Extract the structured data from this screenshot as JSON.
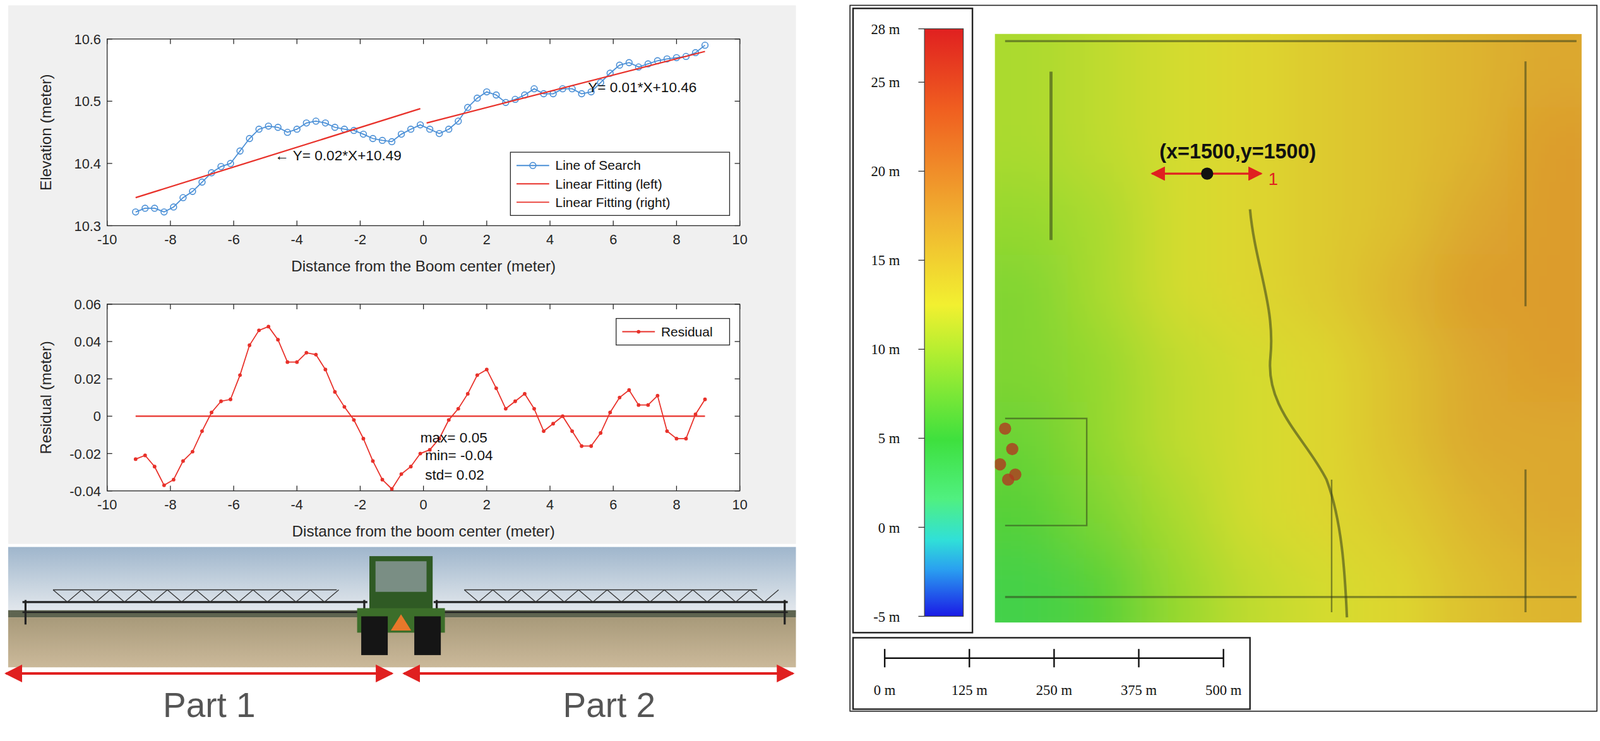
{
  "chart_data": [
    {
      "type": "line",
      "xlabel": "Distance from the Boom center (meter)",
      "ylabel": "Elevation (meter)",
      "xlim": [
        -10,
        10
      ],
      "ylim": [
        10.3,
        10.6
      ],
      "xticks": [
        -10,
        -8,
        -6,
        -4,
        -2,
        0,
        2,
        4,
        6,
        8,
        10
      ],
      "yticks": [
        10.3,
        10.4,
        10.5,
        10.6
      ],
      "legend": "southeast",
      "series": [
        {
          "name": "Line of Search",
          "color": "#4a8fd6",
          "marker": "circle",
          "x": [
            -9.1,
            -8.8,
            -8.5,
            -8.2,
            -7.9,
            -7.6,
            -7.3,
            -7,
            -6.7,
            -6.4,
            -6.1,
            -5.8,
            -5.5,
            -5.2,
            -4.9,
            -4.6,
            -4.3,
            -4,
            -3.7,
            -3.4,
            -3.1,
            -2.8,
            -2.5,
            -2.2,
            -1.9,
            -1.6,
            -1.3,
            -1,
            -0.7,
            -0.4,
            -0.1,
            0.2,
            0.5,
            0.8,
            1.1,
            1.4,
            1.7,
            2,
            2.3,
            2.6,
            2.9,
            3.2,
            3.5,
            3.8,
            4.1,
            4.4,
            4.7,
            5,
            5.3,
            5.6,
            5.9,
            6.2,
            6.5,
            6.8,
            7.1,
            7.4,
            7.7,
            8,
            8.3,
            8.6,
            8.9
          ],
          "values": [
            10.322,
            10.328,
            10.328,
            10.322,
            10.33,
            10.345,
            10.355,
            10.37,
            10.385,
            10.395,
            10.4,
            10.42,
            10.44,
            10.455,
            10.46,
            10.458,
            10.45,
            10.455,
            10.465,
            10.468,
            10.465,
            10.458,
            10.455,
            10.453,
            10.447,
            10.44,
            10.437,
            10.435,
            10.447,
            10.455,
            10.462,
            10.455,
            10.448,
            10.455,
            10.468,
            10.49,
            10.505,
            10.515,
            10.51,
            10.498,
            10.503,
            10.51,
            10.52,
            10.512,
            10.512,
            10.52,
            10.52,
            10.512,
            10.515,
            10.53,
            10.545,
            10.558,
            10.562,
            10.555,
            10.56,
            10.565,
            10.568,
            10.57,
            10.572,
            10.578,
            10.59
          ]
        },
        {
          "name": "Linear Fitting (left)",
          "color": "#e8312a",
          "x": [
            -9.1,
            -0.1
          ],
          "values": [
            10.345,
            10.488
          ]
        },
        {
          "name": "Linear Fitting (right)",
          "color": "#e8312a",
          "x": [
            0.1,
            8.9
          ],
          "values": [
            10.465,
            10.58
          ]
        }
      ],
      "annotations": [
        {
          "text": "← Y= 0.02*X+10.49",
          "x": -4.7,
          "y": 10.405
        },
        {
          "text": "Y= 0.01*X+10.46",
          "x": 5.2,
          "y": 10.515
        }
      ]
    },
    {
      "type": "line",
      "xlabel": "Distance from the boom center (meter)",
      "ylabel": "Residual (meter)",
      "xlim": [
        -10,
        10
      ],
      "ylim": [
        -0.04,
        0.06
      ],
      "xticks": [
        -10,
        -8,
        -6,
        -4,
        -2,
        0,
        2,
        4,
        6,
        8,
        10
      ],
      "yticks": [
        -0.04,
        -0.02,
        0,
        0.02,
        0.04,
        0.06
      ],
      "legend": "northeast",
      "series": [
        {
          "name": "Residual",
          "color": "#e8312a",
          "marker": "dot",
          "x": [
            -9.1,
            -8.8,
            -8.5,
            -8.2,
            -7.9,
            -7.6,
            -7.3,
            -7,
            -6.7,
            -6.4,
            -6.1,
            -5.8,
            -5.5,
            -5.2,
            -4.9,
            -4.6,
            -4.3,
            -4,
            -3.7,
            -3.4,
            -3.1,
            -2.8,
            -2.5,
            -2.2,
            -1.9,
            -1.6,
            -1.3,
            -1,
            -0.7,
            -0.4,
            -0.1,
            0.2,
            0.5,
            0.8,
            1.1,
            1.4,
            1.7,
            2,
            2.3,
            2.6,
            2.9,
            3.2,
            3.5,
            3.8,
            4.1,
            4.4,
            4.7,
            5,
            5.3,
            5.6,
            5.9,
            6.2,
            6.5,
            6.8,
            7.1,
            7.4,
            7.7,
            8,
            8.3,
            8.6,
            8.9
          ],
          "values": [
            -0.023,
            -0.021,
            -0.027,
            -0.037,
            -0.034,
            -0.024,
            -0.019,
            -0.008,
            0.002,
            0.008,
            0.009,
            0.022,
            0.038,
            0.046,
            0.048,
            0.041,
            0.029,
            0.029,
            0.034,
            0.033,
            0.025,
            0.013,
            0.005,
            -0.002,
            -0.012,
            -0.024,
            -0.034,
            -0.039,
            -0.031,
            -0.027,
            -0.02,
            -0.018,
            -0.012,
            -0.002,
            0.004,
            0.012,
            0.022,
            0.025,
            0.015,
            0.004,
            0.008,
            0.012,
            0.004,
            -0.008,
            -0.004,
            0,
            -0.008,
            -0.016,
            -0.016,
            -0.009,
            0.002,
            0.01,
            0.014,
            0.006,
            0.006,
            0.011,
            -0.008,
            -0.012,
            -0.012,
            0.001,
            0.009
          ]
        },
        {
          "color": "#e8312a",
          "x": [
            -9.1,
            8.9
          ],
          "values": [
            0,
            0
          ]
        }
      ],
      "annotations": [
        {
          "text": "max= 0.05",
          "x": -0.1,
          "y": -0.014
        },
        {
          "text": "min= -0.04",
          "x": 0.05,
          "y": -0.0236
        },
        {
          "text": "std= 0.02",
          "x": 0.05,
          "y": -0.034
        }
      ]
    },
    {
      "type": "heatmap",
      "cells": [
        [
          10,
          11,
          12,
          13,
          14,
          15,
          16,
          17
        ],
        [
          10,
          11,
          12,
          13,
          14,
          15,
          16,
          18
        ],
        [
          9,
          10,
          12,
          13,
          14,
          15,
          17,
          18
        ],
        [
          8,
          10,
          12,
          13,
          14,
          16,
          18,
          18
        ],
        [
          8,
          9,
          11,
          12,
          13,
          15,
          17,
          18
        ],
        [
          7,
          9,
          11,
          12,
          13,
          15,
          17,
          17
        ],
        [
          6,
          8,
          10,
          12,
          13,
          14,
          16,
          17
        ],
        [
          4,
          6,
          9,
          11,
          12,
          13,
          15,
          16
        ]
      ],
      "colorbar": {
        "range": [
          -5,
          28
        ],
        "ticks": [
          {
            "value": 28,
            "label": "28 m"
          },
          {
            "value": 25,
            "label": "25 m"
          },
          {
            "value": 20,
            "label": "20 m"
          },
          {
            "value": 15,
            "label": "15 m"
          },
          {
            "value": 10,
            "label": "10 m"
          },
          {
            "value": 5,
            "label": "5 m"
          },
          {
            "value": 0,
            "label": "0 m"
          },
          {
            "value": -5,
            "label": "-5 m"
          }
        ]
      },
      "scale_bar": {
        "range": [
          0,
          500
        ],
        "ticks": [
          {
            "value": 0,
            "label": "0 m"
          },
          {
            "value": 125,
            "label": "125 m"
          },
          {
            "value": 250,
            "label": "250 m"
          },
          {
            "value": 375,
            "label": "375 m"
          },
          {
            "value": 500,
            "label": "500 m"
          }
        ]
      },
      "annotations": [
        {
          "text": "(x=1500,y=1500)"
        },
        {
          "text": "1"
        }
      ]
    }
  ],
  "photo": {
    "labels": [
      "Part 1",
      "Part 2"
    ]
  }
}
